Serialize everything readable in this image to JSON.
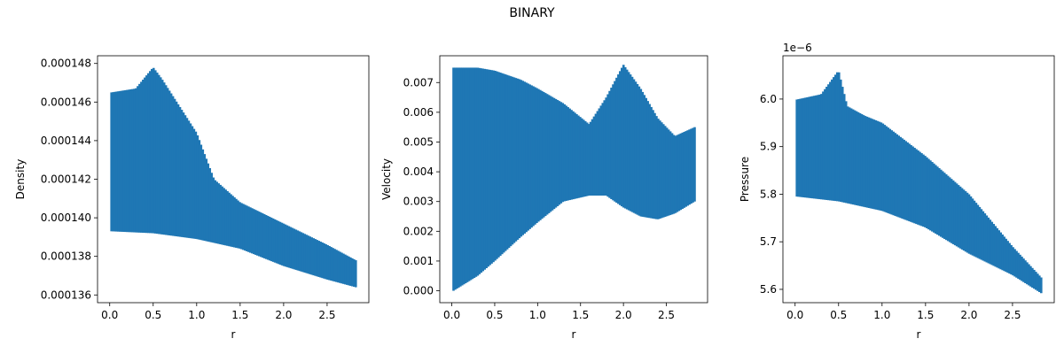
{
  "figure": {
    "title": "BINARY"
  },
  "chart_data": [
    {
      "type": "area",
      "title": "",
      "xlabel": "r",
      "ylabel": "Density",
      "xlim": [
        -0.14,
        2.98
      ],
      "ylim": [
        0.0001356,
        0.0001484
      ],
      "x_ticks": [
        0.0,
        0.5,
        1.0,
        1.5,
        2.0,
        2.5
      ],
      "x_tick_labels": [
        "0.0",
        "0.5",
        "1.0",
        "1.5",
        "2.0",
        "2.5"
      ],
      "y_ticks": [
        0.000136,
        0.000138,
        0.00014,
        0.000142,
        0.000144,
        0.000146,
        0.000148
      ],
      "y_tick_labels": [
        "0.000136",
        "0.000138",
        "0.000140",
        "0.000142",
        "0.000144",
        "0.000146",
        "0.000148"
      ],
      "offset_label": "",
      "color": "#1f77b4",
      "upper": {
        "x": [
          0.02,
          0.3,
          0.5,
          0.6,
          0.8,
          1.0,
          1.2,
          1.5,
          2.0,
          2.5,
          2.83
        ],
        "y": [
          0.0001465,
          0.0001467,
          0.0001478,
          0.0001472,
          0.0001458,
          0.0001444,
          0.000142,
          0.0001408,
          0.0001397,
          0.0001386,
          0.0001378
        ]
      },
      "lower": {
        "x": [
          0.02,
          0.5,
          1.0,
          1.5,
          2.0,
          2.5,
          2.83
        ],
        "y": [
          0.0001393,
          0.0001392,
          0.0001389,
          0.0001384,
          0.0001375,
          0.0001368,
          0.0001364
        ]
      }
    },
    {
      "type": "area",
      "title": "",
      "xlabel": "r",
      "ylabel": "Velocity",
      "xlim": [
        -0.14,
        2.98
      ],
      "ylim": [
        -0.0004,
        0.0079
      ],
      "x_ticks": [
        0.0,
        0.5,
        1.0,
        1.5,
        2.0,
        2.5
      ],
      "x_tick_labels": [
        "0.0",
        "0.5",
        "1.0",
        "1.5",
        "2.0",
        "2.5"
      ],
      "y_ticks": [
        0.0,
        0.001,
        0.002,
        0.003,
        0.004,
        0.005,
        0.006,
        0.007
      ],
      "y_tick_labels": [
        "0.000",
        "0.001",
        "0.002",
        "0.003",
        "0.004",
        "0.005",
        "0.006",
        "0.007"
      ],
      "offset_label": "",
      "color": "#1f77b4",
      "upper": {
        "x": [
          0.02,
          0.3,
          0.5,
          0.8,
          1.0,
          1.3,
          1.6,
          1.8,
          2.0,
          2.2,
          2.4,
          2.6,
          2.83
        ],
        "y": [
          0.0075,
          0.0075,
          0.0074,
          0.0071,
          0.0068,
          0.0063,
          0.0056,
          0.0065,
          0.0076,
          0.0068,
          0.0058,
          0.0052,
          0.0055
        ]
      },
      "lower": {
        "x": [
          0.02,
          0.3,
          0.5,
          0.8,
          1.0,
          1.3,
          1.6,
          1.8,
          2.0,
          2.2,
          2.4,
          2.6,
          2.83
        ],
        "y": [
          0.0,
          0.0005,
          0.001,
          0.0018,
          0.0023,
          0.003,
          0.0032,
          0.0032,
          0.0028,
          0.0025,
          0.0024,
          0.0026,
          0.003
        ]
      }
    },
    {
      "type": "area",
      "title": "",
      "xlabel": "r",
      "ylabel": "Pressure",
      "xlim": [
        -0.14,
        2.98
      ],
      "ylim": [
        5.572e-06,
        6.091e-06
      ],
      "x_ticks": [
        0.0,
        0.5,
        1.0,
        1.5,
        2.0,
        2.5
      ],
      "x_tick_labels": [
        "0.0",
        "0.5",
        "1.0",
        "1.5",
        "2.0",
        "2.5"
      ],
      "y_ticks": [
        5.6e-06,
        5.7e-06,
        5.8e-06,
        5.9e-06,
        6e-06
      ],
      "y_tick_labels": [
        "5.6",
        "5.7",
        "5.8",
        "5.9",
        "6.0"
      ],
      "offset_label": "1e−6",
      "color": "#1f77b4",
      "upper": {
        "x": [
          0.02,
          0.3,
          0.5,
          0.6,
          0.8,
          1.0,
          1.5,
          2.0,
          2.5,
          2.83
        ],
        "y": [
          5.999e-06,
          6.01e-06,
          6.06e-06,
          5.985e-06,
          5.965e-06,
          5.95e-06,
          5.88e-06,
          5.8e-06,
          5.69e-06,
          5.625e-06
        ]
      },
      "lower": {
        "x": [
          0.02,
          0.5,
          1.0,
          1.5,
          2.0,
          2.5,
          2.83
        ],
        "y": [
          5.795e-06,
          5.785e-06,
          5.765e-06,
          5.73e-06,
          5.675e-06,
          5.63e-06,
          5.592e-06
        ]
      }
    }
  ]
}
